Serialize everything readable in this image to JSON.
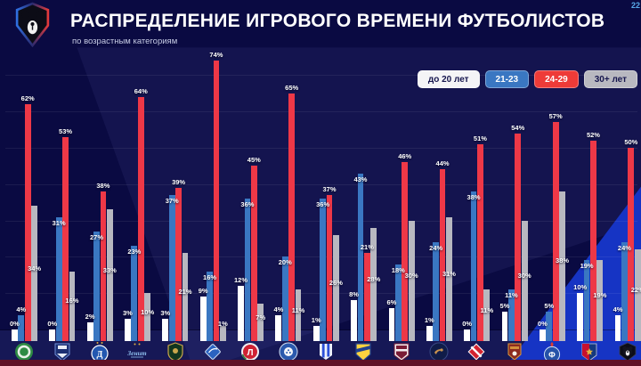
{
  "page": {
    "slide_number": "22"
  },
  "header": {
    "title": "РАСПРЕДЕЛЕНИЕ ИГРОВОГО ВРЕМЕНИ ФУТБОЛИСТОВ",
    "subtitle": "по возрастным категориям",
    "logo_icon": "rpl-bear-shield-logo"
  },
  "legend": {
    "items": [
      {
        "label": "до 20 лет",
        "bg": "#f4f4f6",
        "text_color": "#16164e"
      },
      {
        "label": "21-23",
        "bg": "#3a77c2",
        "text_color": "#ffffff"
      },
      {
        "label": "24-29",
        "bg": "#ee3b38",
        "text_color": "#ffffff"
      },
      {
        "label": "30+ лет",
        "bg": "#b8b8c0",
        "text_color": "#16164e"
      }
    ]
  },
  "chart_data": {
    "type": "bar",
    "title": "РАСПРЕДЕЛЕНИЕ ИГРОВОГО ВРЕМЕНИ ФУТБОЛИСТОВ",
    "subtitle": "по возрастным категориям",
    "unit": "%",
    "ylim": [
      0,
      80
    ],
    "grid": true,
    "legend_position": "top-right",
    "categories": [
      "Ахмат",
      "Балтика",
      "Динамо",
      "Зенит",
      "Краснодар",
      "Крылья Советов",
      "Локомотив",
      "Оренбург",
      "Пари НН",
      "Ростов",
      "Рубин",
      "Сочи",
      "Спартак",
      "Урал",
      "Факел",
      "ЦСКА",
      "РПЛ"
    ],
    "logo_icons": [
      "akhmat-logo",
      "baltika-logo",
      "dinamo-logo",
      "zenit-logo",
      "krasnodar-logo",
      "krylia-sovetov-logo",
      "lokomotiv-logo",
      "orenburg-logo",
      "pari-nn-logo",
      "rostov-logo",
      "rubin-logo",
      "sochi-logo",
      "spartak-logo",
      "ural-logo",
      "fakel-logo",
      "cska-logo",
      "rpl-logo"
    ],
    "series": [
      {
        "name": "до 20 лет",
        "color": "#ffffff",
        "values": [
          0,
          0,
          2,
          3,
          3,
          9,
          12,
          4,
          1,
          8,
          6,
          1,
          0,
          5,
          0,
          10,
          4
        ]
      },
      {
        "name": "21-23",
        "color": "#3a77c2",
        "values": [
          4,
          31,
          27,
          23,
          37,
          16,
          36,
          20,
          36,
          43,
          18,
          24,
          38,
          11,
          5,
          19,
          24
        ]
      },
      {
        "name": "24-29",
        "color": "#ee3847",
        "values": [
          62,
          53,
          38,
          64,
          39,
          74,
          45,
          65,
          37,
          21,
          46,
          44,
          51,
          54,
          57,
          52,
          50
        ]
      },
      {
        "name": "30+ лет",
        "color": "#b8b8c0",
        "values": [
          34,
          16,
          33,
          10,
          21,
          1,
          7,
          11,
          26,
          28,
          30,
          31,
          11,
          30,
          38,
          19,
          22
        ]
      }
    ]
  }
}
